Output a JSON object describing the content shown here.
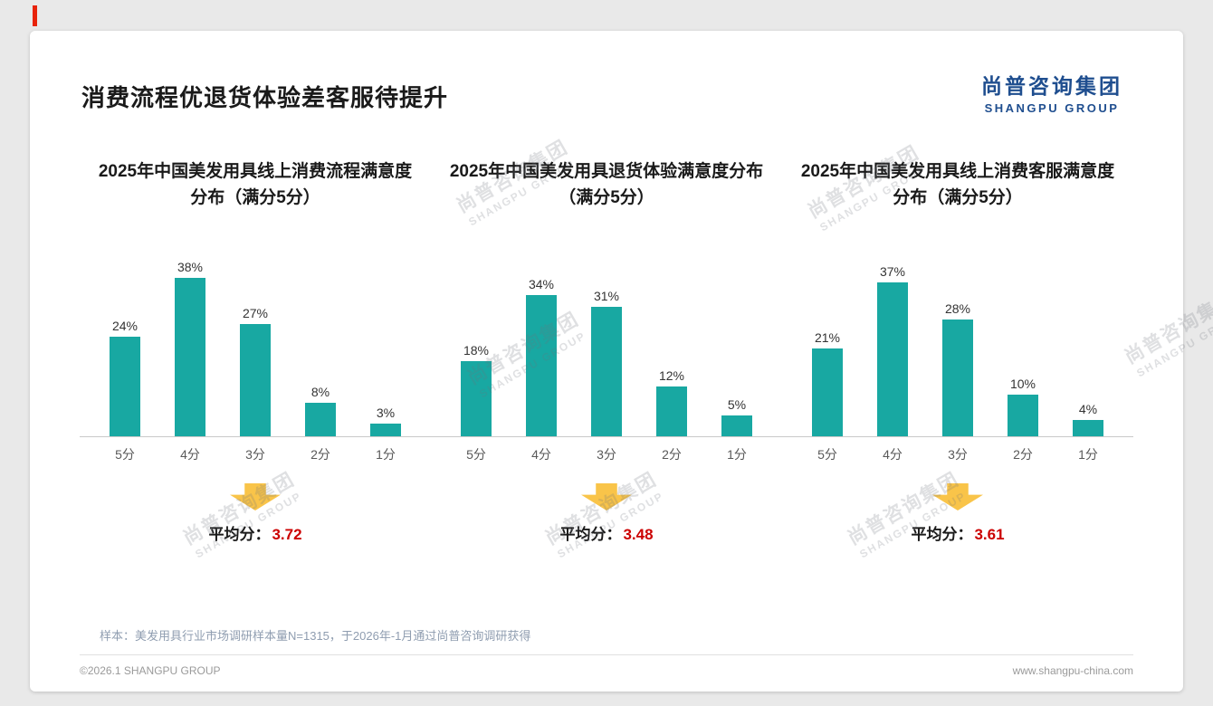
{
  "page": {
    "title": "消费流程优退货体验差客服待提升",
    "logo": {
      "cn": "尚普咨询集团",
      "en": "SHANGPU GROUP"
    },
    "watermark": {
      "cn": "尚普咨询集团",
      "en": "SHANGPU GROUP"
    },
    "footnote": "样本：美发用具行业市场调研样本量N=1315，于2026年-1月通过尚普咨询调研获得",
    "footer_left": "©2026.1 SHANGPU GROUP",
    "footer_right": "www.shangpu-china.com"
  },
  "colors": {
    "bar": "#18a8a2",
    "arrow": "#f9c449",
    "average_red": "#cc0000",
    "logo_blue": "#1f4e8f"
  },
  "average_label": "平均分：",
  "chart_data": [
    {
      "type": "bar",
      "title": "2025年中国美发用具线上消费流程满意度分布（满分5分）",
      "categories": [
        "5分",
        "4分",
        "3分",
        "2分",
        "1分"
      ],
      "values": [
        24,
        38,
        27,
        8,
        3
      ],
      "value_labels": [
        "24%",
        "38%",
        "27%",
        "8%",
        "3%"
      ],
      "average": "3.72",
      "ylim": [
        0,
        40
      ],
      "grid": false,
      "legend": "none"
    },
    {
      "type": "bar",
      "title": "2025年中国美发用具退货体验满意度分布（满分5分）",
      "categories": [
        "5分",
        "4分",
        "3分",
        "2分",
        "1分"
      ],
      "values": [
        18,
        34,
        31,
        12,
        5
      ],
      "value_labels": [
        "18%",
        "34%",
        "31%",
        "12%",
        "5%"
      ],
      "average": "3.48",
      "ylim": [
        0,
        40
      ],
      "grid": false,
      "legend": "none"
    },
    {
      "type": "bar",
      "title": "2025年中国美发用具线上消费客服满意度分布（满分5分）",
      "categories": [
        "5分",
        "4分",
        "3分",
        "2分",
        "1分"
      ],
      "values": [
        21,
        37,
        28,
        10,
        4
      ],
      "value_labels": [
        "21%",
        "37%",
        "28%",
        "10%",
        "4%"
      ],
      "average": "3.61",
      "ylim": [
        0,
        40
      ],
      "grid": false,
      "legend": "none"
    }
  ]
}
